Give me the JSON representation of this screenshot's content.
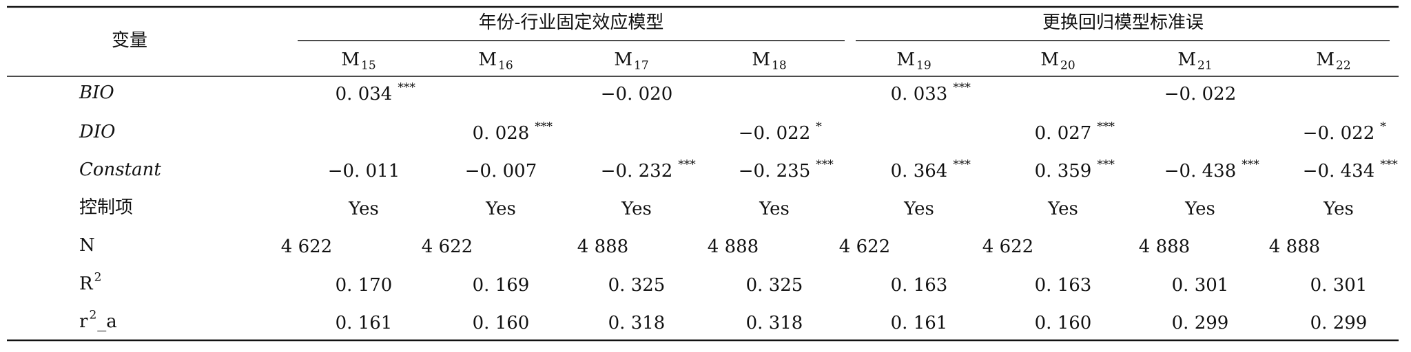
{
  "header": {
    "row_label": "变量",
    "groups": [
      {
        "title": "年份-行业固定效应模型"
      },
      {
        "title": "更换回归模型标准误"
      }
    ],
    "columns": [
      {
        "base": "M",
        "sub": "15"
      },
      {
        "base": "M",
        "sub": "16"
      },
      {
        "base": "M",
        "sub": "17"
      },
      {
        "base": "M",
        "sub": "18"
      },
      {
        "base": "M",
        "sub": "19"
      },
      {
        "base": "M",
        "sub": "20"
      },
      {
        "base": "M",
        "sub": "21"
      },
      {
        "base": "M",
        "sub": "22"
      }
    ]
  },
  "rows": [
    {
      "label": "BIO",
      "italic": true,
      "cells": [
        {
          "text": "0. 034",
          "stars": "***"
        },
        null,
        {
          "text": "−0. 020"
        },
        null,
        {
          "text": "0. 033",
          "stars": "***"
        },
        null,
        {
          "text": "−0. 022"
        },
        null
      ]
    },
    {
      "label": "DIO",
      "italic": true,
      "cells": [
        null,
        {
          "text": "0. 028",
          "stars": "***"
        },
        null,
        {
          "text": "−0. 022",
          "stars": "*"
        },
        null,
        {
          "text": "0. 027",
          "stars": "***"
        },
        null,
        {
          "text": "−0. 022",
          "stars": "*"
        }
      ]
    },
    {
      "label": "Constant",
      "italic": true,
      "cells": [
        {
          "text": "−0. 011"
        },
        {
          "text": "−0. 007"
        },
        {
          "text": "−0. 232",
          "stars": "***"
        },
        {
          "text": "−0. 235",
          "stars": "***"
        },
        {
          "text": "0. 364",
          "stars": "***"
        },
        {
          "text": "0. 359",
          "stars": "***"
        },
        {
          "text": "−0. 438",
          "stars": "***"
        },
        {
          "text": "−0. 434",
          "stars": "***"
        }
      ]
    },
    {
      "label": "控制项",
      "cells": [
        {
          "text": "Yes"
        },
        {
          "text": "Yes"
        },
        {
          "text": "Yes"
        },
        {
          "text": "Yes"
        },
        {
          "text": "Yes"
        },
        {
          "text": "Yes"
        },
        {
          "text": "Yes"
        },
        {
          "text": "Yes"
        }
      ]
    },
    {
      "label": "N",
      "cells": [
        {
          "text": "4 622"
        },
        {
          "text": "4 622"
        },
        {
          "text": "4 888"
        },
        {
          "text": "4 888"
        },
        {
          "text": "4 622"
        },
        {
          "text": "4 622"
        },
        {
          "text": "4 888"
        },
        {
          "text": "4 888"
        }
      ]
    },
    {
      "label": "R",
      "sup": "2",
      "cells": [
        {
          "text": "0. 170"
        },
        {
          "text": "0. 169"
        },
        {
          "text": "0. 325"
        },
        {
          "text": "0. 325"
        },
        {
          "text": "0. 163"
        },
        {
          "text": "0. 163"
        },
        {
          "text": "0. 301"
        },
        {
          "text": "0. 301"
        }
      ]
    },
    {
      "label": "r",
      "sup": "2",
      "suffix": "_a",
      "cells": [
        {
          "text": "0. 161"
        },
        {
          "text": "0. 160"
        },
        {
          "text": "0. 318"
        },
        {
          "text": "0. 318"
        },
        {
          "text": "0. 161"
        },
        {
          "text": "0. 160"
        },
        {
          "text": "0. 299"
        },
        {
          "text": "0. 299"
        }
      ]
    }
  ]
}
